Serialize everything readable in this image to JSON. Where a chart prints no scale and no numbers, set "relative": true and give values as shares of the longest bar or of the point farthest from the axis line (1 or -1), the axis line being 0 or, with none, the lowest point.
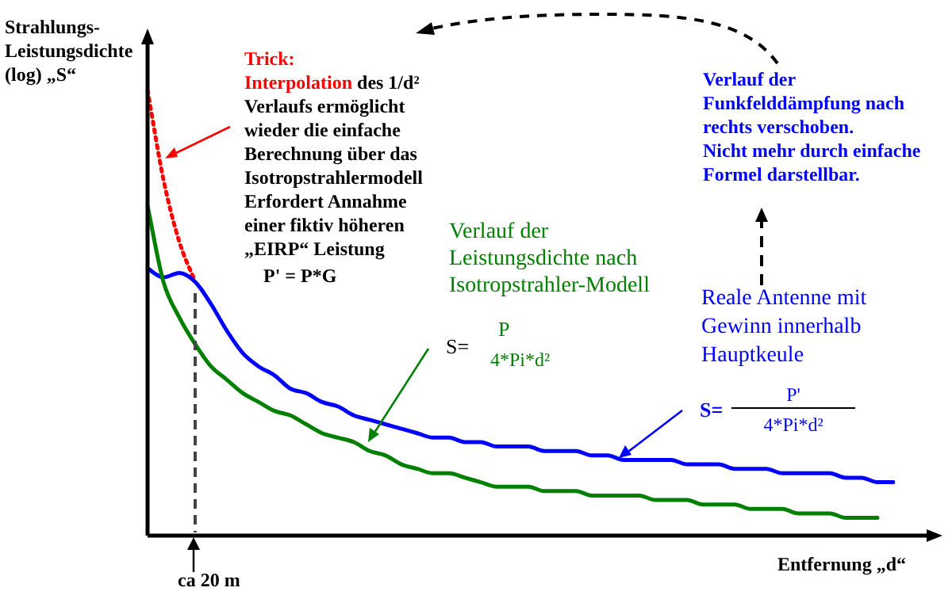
{
  "chart_data": {
    "type": "line",
    "relative": true,
    "legend": false,
    "marker": "none",
    "ylabel": "Strahlungs-Leistungsdichte (log) „S“",
    "xlabel": "Entfernung „d“",
    "categories": [
      null,
      null,
      null,
      null,
      null,
      null,
      null,
      null,
      null,
      null,
      null,
      null,
      null,
      null,
      null,
      null,
      null,
      null,
      null,
      null,
      null,
      null,
      null,
      null,
      null,
      null,
      null,
      null,
      null,
      null,
      null,
      null,
      null,
      null,
      null,
      null,
      null,
      null,
      null,
      null,
      null,
      null,
      null,
      null,
      null,
      null,
      null,
      null
    ],
    "series": [
      {
        "color": "#ff0000",
        "line_style": "dotted",
        "values": [
          1.0,
          0.8,
          0.66,
          0.57,
          null,
          null,
          null,
          null,
          null,
          null,
          null,
          null,
          null,
          null,
          null,
          null,
          null,
          null,
          null,
          null,
          null,
          null,
          null,
          null,
          null,
          null,
          null,
          null,
          null,
          null,
          null,
          null,
          null,
          null,
          null,
          null,
          null,
          null,
          null,
          null,
          null,
          null,
          null,
          null,
          null,
          null,
          null,
          null
        ]
      },
      {
        "color": "#0000ff",
        "values": [
          0.6,
          0.58,
          0.59,
          0.57,
          0.52,
          0.46,
          0.41,
          0.38,
          0.36,
          0.33,
          0.32,
          0.3,
          0.29,
          0.27,
          0.26,
          0.25,
          0.24,
          0.23,
          0.22,
          0.22,
          0.21,
          0.21,
          0.2,
          0.2,
          0.2,
          0.19,
          0.19,
          0.19,
          0.18,
          0.18,
          0.17,
          0.17,
          0.17,
          0.17,
          0.16,
          0.16,
          0.16,
          0.15,
          0.15,
          0.15,
          0.14,
          0.14,
          0.14,
          0.14,
          0.13,
          0.13,
          0.12,
          0.12
        ]
      },
      {
        "color": "#008000",
        "values": [
          0.74,
          0.57,
          0.49,
          0.43,
          0.38,
          0.35,
          0.32,
          0.3,
          0.28,
          0.27,
          0.25,
          0.23,
          0.22,
          0.21,
          0.19,
          0.18,
          0.16,
          0.15,
          0.14,
          0.14,
          0.13,
          0.12,
          0.11,
          0.11,
          0.11,
          0.1,
          0.1,
          0.1,
          0.09,
          0.09,
          0.09,
          0.09,
          0.08,
          0.08,
          0.08,
          0.07,
          0.07,
          0.07,
          0.06,
          0.06,
          0.06,
          0.05,
          0.05,
          0.05,
          0.04,
          0.04,
          0.04,
          null
        ]
      }
    ],
    "annotations": [
      "Trick:",
      "Interpolation",
      "des 1/d² Verlaufs ermöglicht wieder die einfache Berechnung über  das Isotropstrahlermodell Erfordert Annahme einer  fiktiv höheren „EIRP“ Leistung",
      "P' = P*G",
      "Verlauf der Leistungsdichte nach Isotropstrahler-Modell",
      "S=",
      "P",
      "4*Pi*d²",
      "Verlauf der Funkfelddämpfung nach rechts verschoben.",
      "Nicht mehr durch einfache Formel darstellbar.",
      "Reale Antenne mit Gewinn innerhalb Hauptkeule",
      "S=",
      "P'",
      "4*Pi*d²",
      "ca 20 m"
    ]
  }
}
